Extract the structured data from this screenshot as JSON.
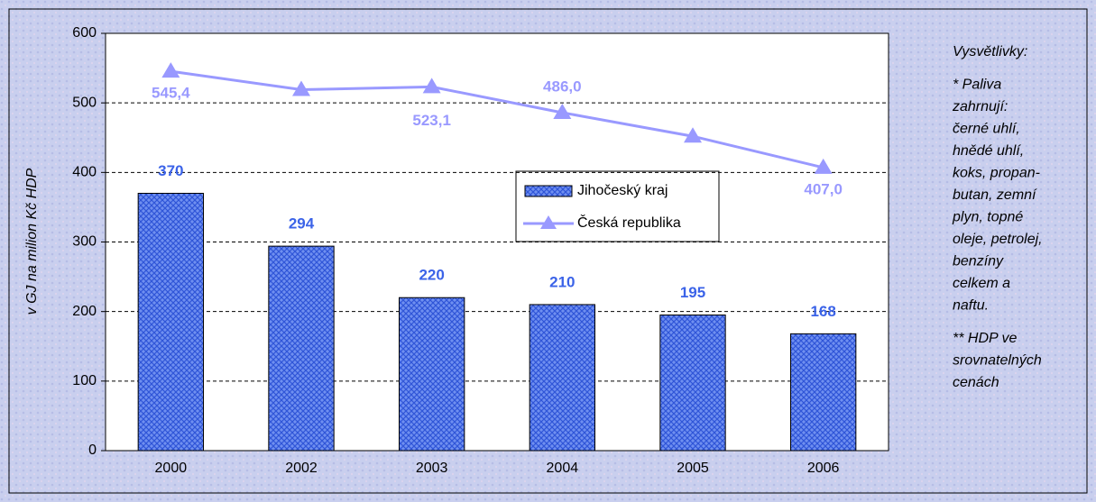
{
  "chart_data": {
    "type": "bar",
    "categories": [
      "2000",
      "2002",
      "2003",
      "2004",
      "2005",
      "2006"
    ],
    "series": [
      {
        "name": "Jihočeský kraj",
        "type": "bar",
        "color": "#4a72e8",
        "values": [
          370,
          294,
          220,
          210,
          195,
          168
        ]
      },
      {
        "name": "Česká republika",
        "type": "line",
        "color": "#9999ff",
        "values": [
          545.4,
          519,
          523.1,
          486.0,
          452,
          407.0
        ],
        "value_labels": [
          "545,4",
          null,
          "523,1",
          "486,0",
          null,
          "407,0"
        ]
      }
    ],
    "ylabel": "v GJ na milion Kč HDP",
    "ylim": [
      0,
      600
    ],
    "yticks": [
      0,
      100,
      200,
      300,
      400,
      500,
      600
    ],
    "grid": true,
    "notes": [
      [
        "Vysvětlivky:"
      ],
      [
        "* Paliva",
        "zahrnují:",
        "černé uhlí,",
        "hnědé uhlí,",
        "koks, propan-",
        "butan, zemní",
        "plyn, topné",
        "oleje, petrolej,",
        "benzíny",
        "celkem a",
        "naftu."
      ],
      [
        "** HDP ve",
        "srovnatelných",
        "cenách"
      ]
    ]
  }
}
